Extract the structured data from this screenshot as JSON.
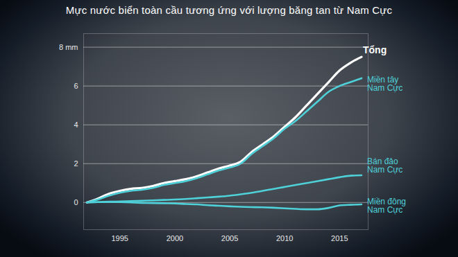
{
  "chart_data": {
    "type": "line",
    "title": "Mực nước biển toàn cầu tương ứng với lượng băng tan từ Nam Cực",
    "x": [
      1992,
      1993,
      1994,
      1995,
      1996,
      1997,
      1998,
      1999,
      2000,
      2001,
      2002,
      2003,
      2004,
      2005,
      2006,
      2007,
      2008,
      2009,
      2010,
      2011,
      2012,
      2013,
      2014,
      2015,
      2016,
      2017
    ],
    "series": [
      {
        "name": "Tổng",
        "color": "#ffffff",
        "values": [
          0,
          0.2,
          0.45,
          0.6,
          0.7,
          0.75,
          0.85,
          1.0,
          1.1,
          1.2,
          1.35,
          1.55,
          1.75,
          1.9,
          2.1,
          2.6,
          3.0,
          3.4,
          3.9,
          4.4,
          5.0,
          5.6,
          6.2,
          6.8,
          7.2,
          7.5
        ]
      },
      {
        "name": "Miền tây Nam Cực",
        "color": "#4fd1d9",
        "values": [
          0,
          0.15,
          0.35,
          0.5,
          0.6,
          0.65,
          0.75,
          0.9,
          1.0,
          1.1,
          1.25,
          1.45,
          1.65,
          1.8,
          2.0,
          2.5,
          2.9,
          3.3,
          3.8,
          4.2,
          4.7,
          5.2,
          5.7,
          6.0,
          6.2,
          6.4
        ]
      },
      {
        "name": "Bán đảo Nam Cực",
        "color": "#4fd1d9",
        "values": [
          0,
          0.02,
          0.04,
          0.05,
          0.07,
          0.09,
          0.11,
          0.13,
          0.15,
          0.18,
          0.22,
          0.26,
          0.3,
          0.35,
          0.42,
          0.5,
          0.6,
          0.7,
          0.8,
          0.9,
          1.0,
          1.1,
          1.2,
          1.3,
          1.38,
          1.4
        ]
      },
      {
        "name": "Miền đông Nam Cực",
        "color": "#4fd1d9",
        "values": [
          0,
          0.02,
          0.03,
          0.02,
          0.0,
          -0.02,
          -0.03,
          -0.04,
          -0.05,
          -0.08,
          -0.1,
          -0.14,
          -0.17,
          -0.2,
          -0.22,
          -0.24,
          -0.25,
          -0.27,
          -0.3,
          -0.33,
          -0.35,
          -0.35,
          -0.28,
          -0.15,
          -0.12,
          -0.1
        ]
      }
    ],
    "xlim": [
      1991.7,
      2017.6
    ],
    "xticks": [
      1995,
      2000,
      2005,
      2010,
      2015
    ],
    "ylim": [
      -1.4,
      8.7
    ],
    "yticks": [
      0,
      2,
      4,
      6,
      {
        "value": 8,
        "label": "8 mm"
      }
    ],
    "grid": true
  }
}
